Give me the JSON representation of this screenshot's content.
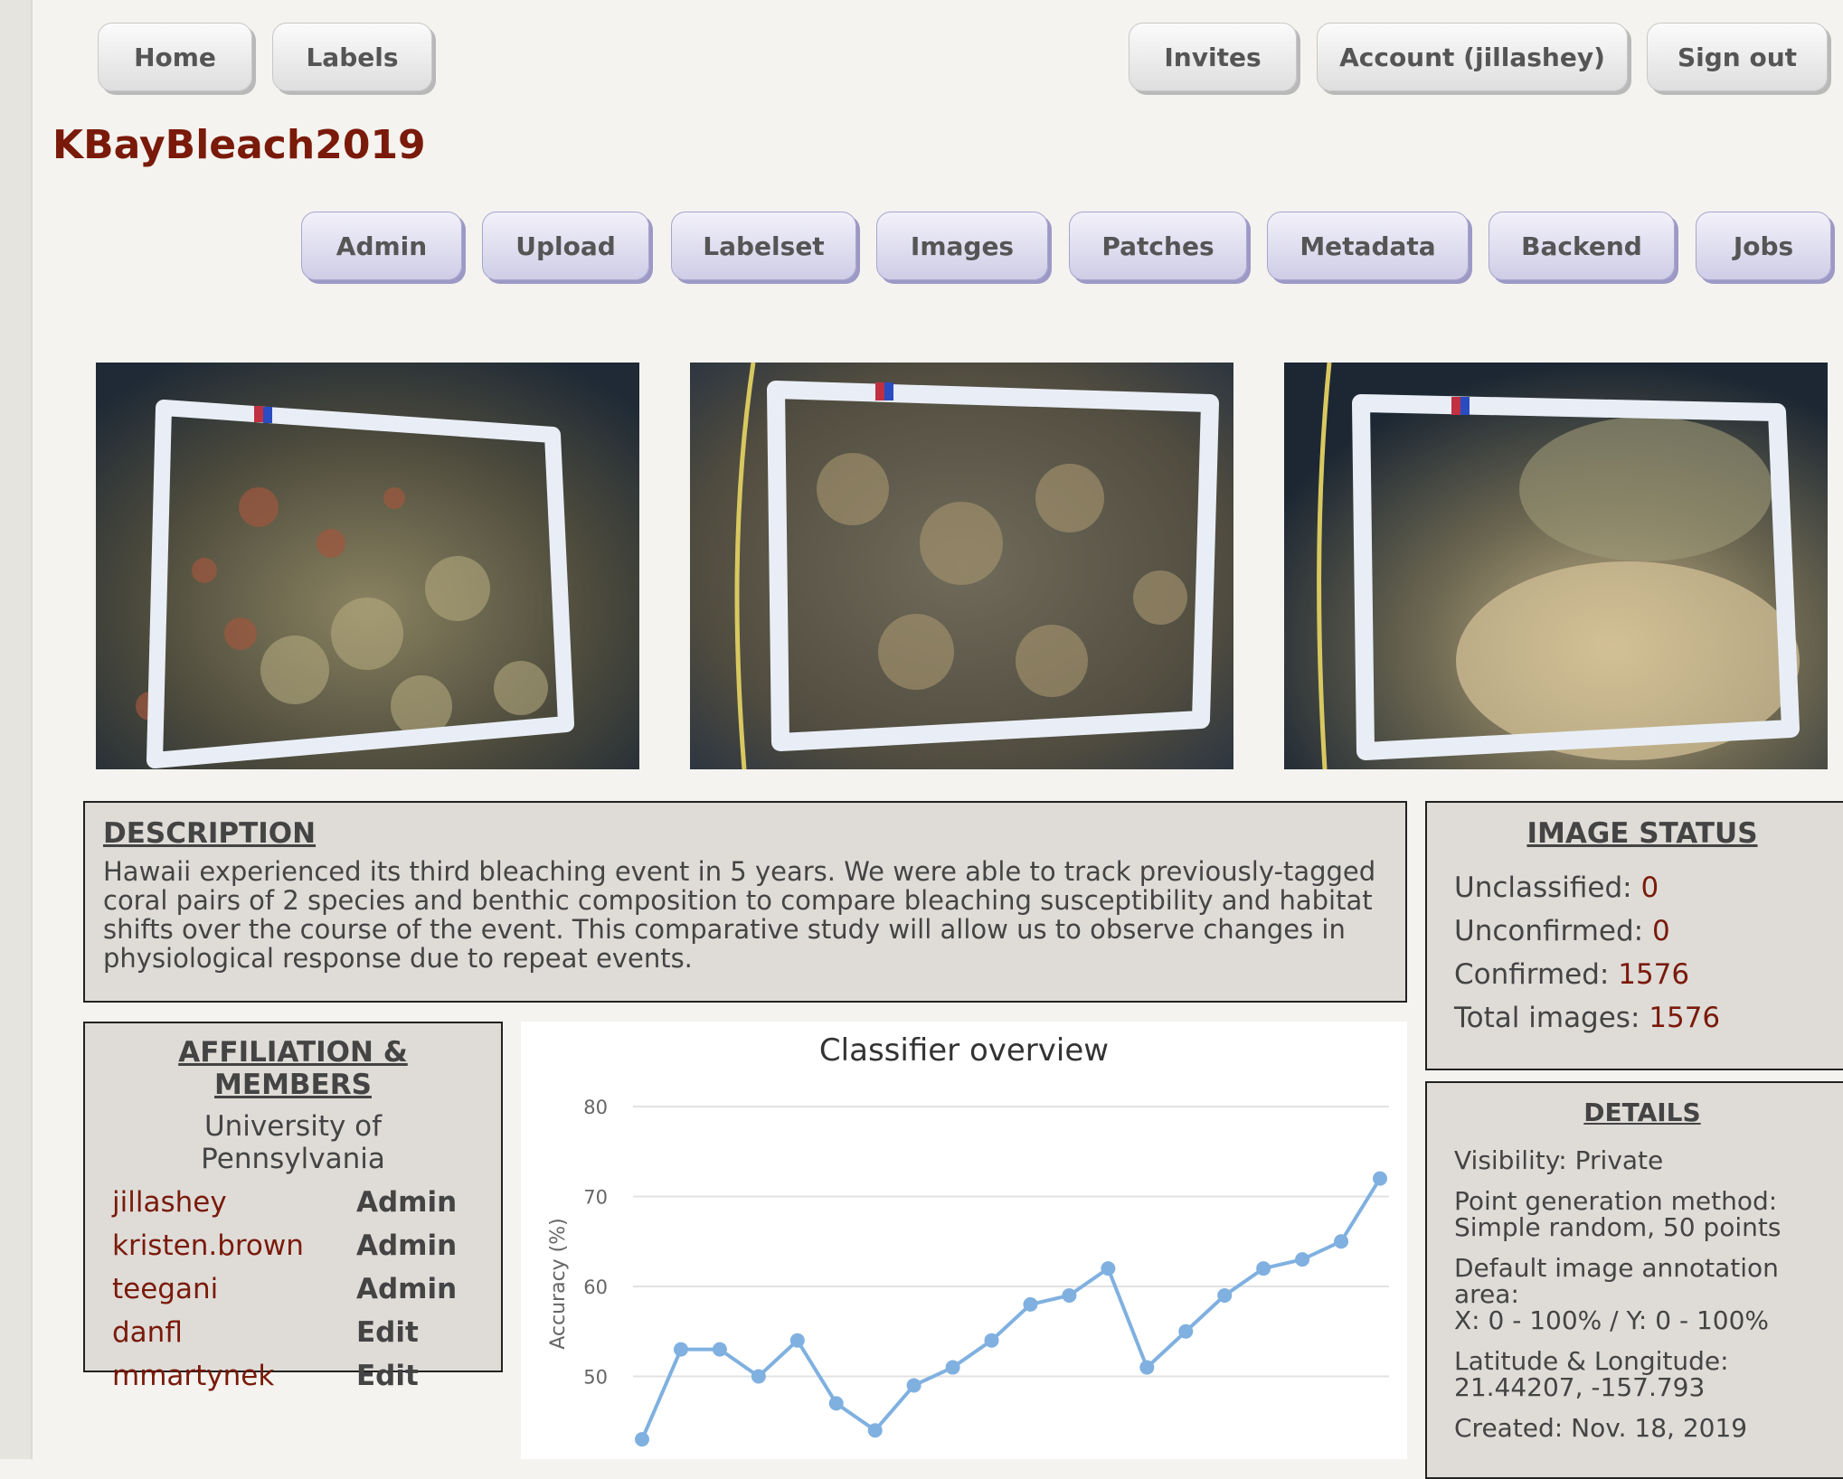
{
  "top_nav": {
    "home": "Home",
    "labels": "Labels",
    "invites": "Invites",
    "account": "Account (jillashey)",
    "sign_out": "Sign out"
  },
  "source_title": "KBayBleach2019",
  "source_nav": [
    "Admin",
    "Upload",
    "Labelset",
    "Images",
    "Patches",
    "Metadata",
    "Backend",
    "Jobs"
  ],
  "description": {
    "heading": "DESCRIPTION",
    "text": "Hawaii experienced its third bleaching event in 5 years. We were able to track previously-tagged coral pairs of 2 species and benthic composition to compare bleaching susceptibility and habitat shifts over the course of the event. This comparative study will allow us to observe changes in physiological response due to repeat events."
  },
  "image_status": {
    "heading": "IMAGE STATUS",
    "rows": [
      {
        "label": "Unclassified: ",
        "value": "0"
      },
      {
        "label": "Unconfirmed: ",
        "value": "0"
      },
      {
        "label": "Confirmed: ",
        "value": "1576"
      },
      {
        "label": "Total images: ",
        "value": "1576"
      }
    ]
  },
  "details": {
    "heading": "DETAILS",
    "visibility": "Visibility: Private",
    "point_method": "Point generation method: Simple random, 50 points",
    "annotation_area": "Default image annotation area:",
    "annotation_area_value": "X: 0 - 100% / Y: 0 - 100%",
    "latlon_label": "Latitude & Longitude:",
    "latlon_value": "21.44207, -157.793",
    "created": "Created: Nov. 18, 2019"
  },
  "affiliation": {
    "heading": "AFFILIATION & MEMBERS",
    "org": "University of Pennsylvania",
    "members": [
      {
        "name": "jillashey",
        "role": "Admin"
      },
      {
        "name": "kristen.brown",
        "role": "Admin"
      },
      {
        "name": "teegani",
        "role": "Admin"
      },
      {
        "name": "danfl",
        "role": "Edit"
      },
      {
        "name": "mmartynek",
        "role": "Edit"
      }
    ]
  },
  "chart_data": {
    "type": "line",
    "title": "Classifier overview",
    "ylabel": "Accuracy (%)",
    "xlabel": "",
    "yticks": [
      80,
      70,
      60,
      50
    ],
    "ylim": [
      40,
      80
    ],
    "series": [
      {
        "values": [
          43,
          53,
          53,
          50,
          54,
          47,
          44,
          49,
          51,
          54,
          58,
          59,
          62,
          51,
          55,
          59,
          62,
          63,
          65,
          72
        ]
      }
    ],
    "line_color": "#7fb0e0",
    "grid": true
  },
  "colors": {
    "brand": "#7a1a0a",
    "nav_button": "#d6d4eb",
    "panel": "#dfdcd8"
  }
}
